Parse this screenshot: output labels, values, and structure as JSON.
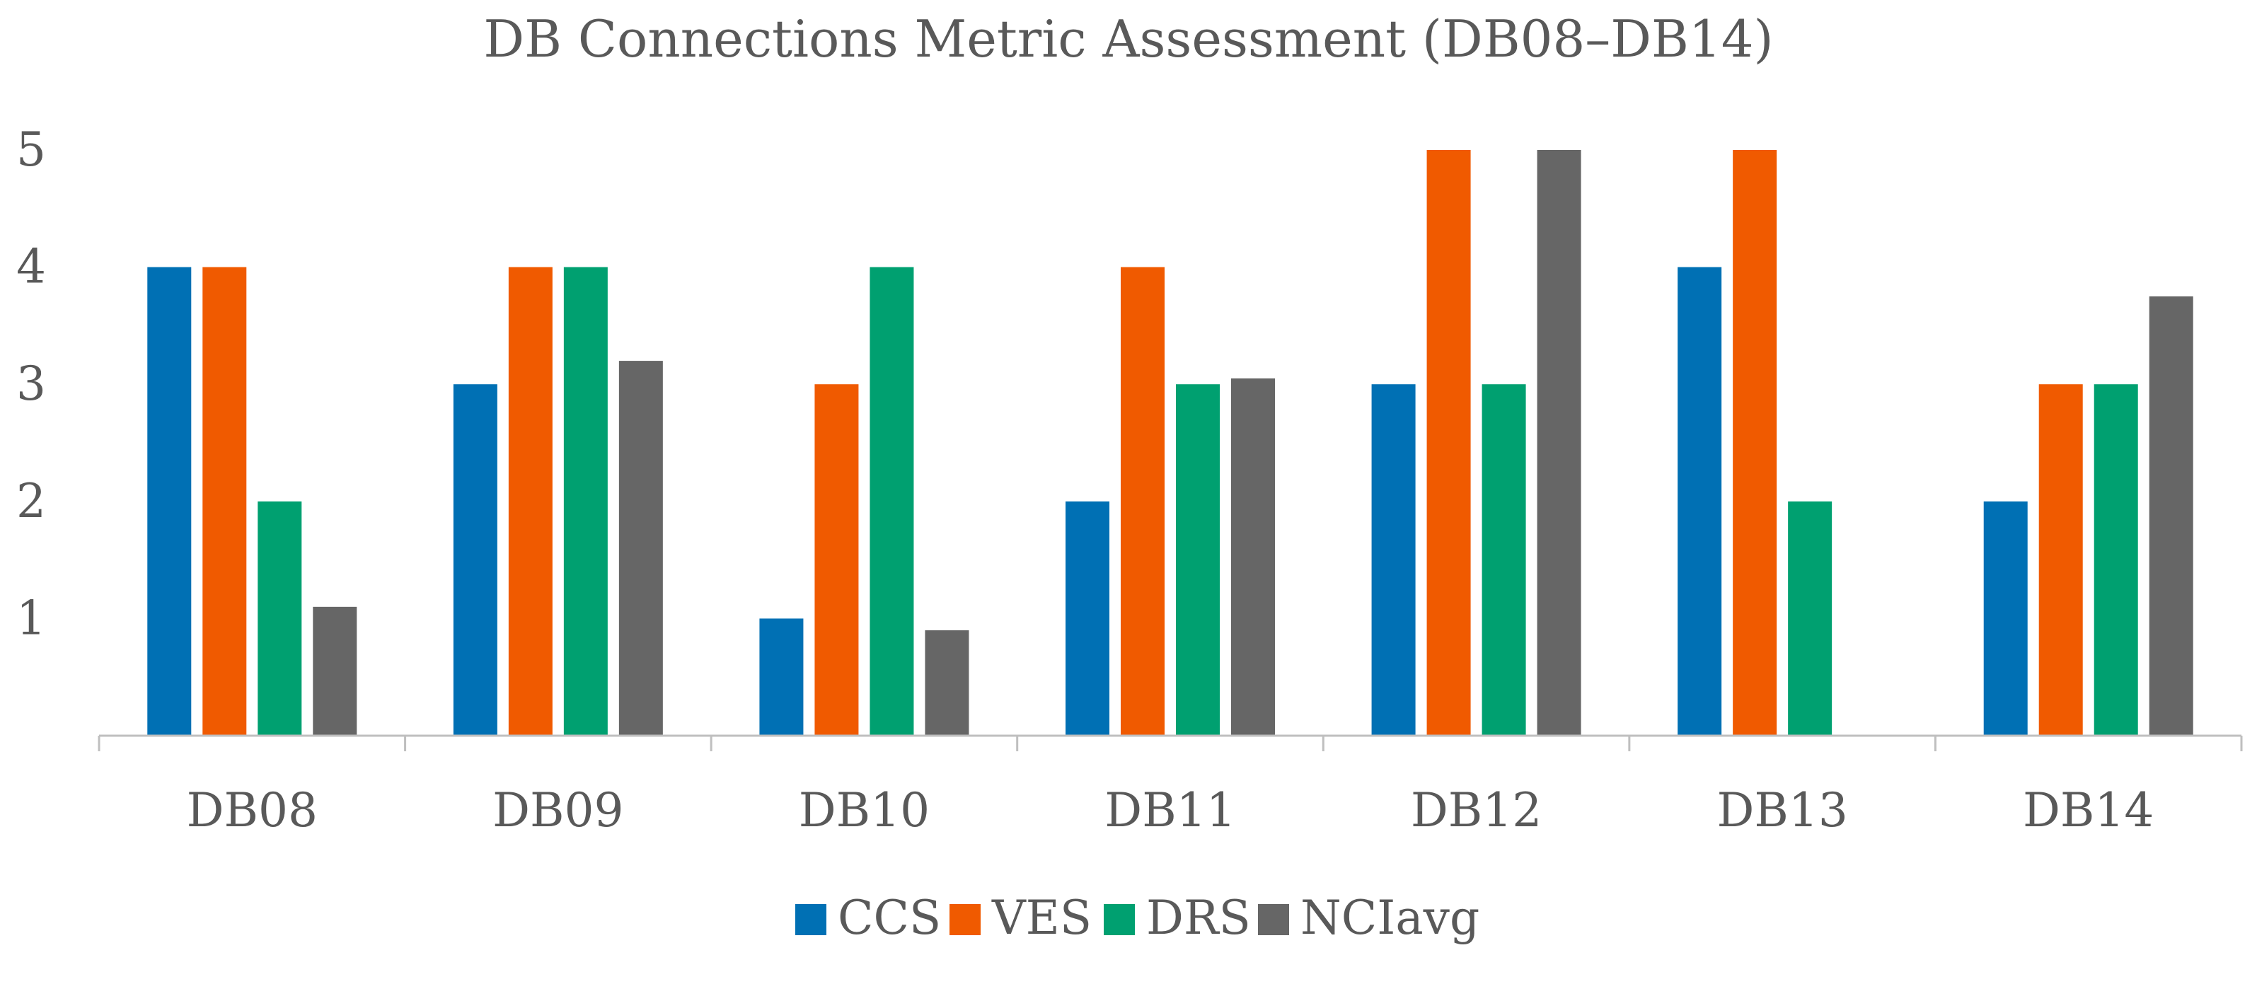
{
  "chart_data": {
    "type": "bar",
    "title": "DB Connections Metric Assessment (DB08–DB14)",
    "xlabel": "",
    "ylabel": "",
    "ylim": [
      0,
      5
    ],
    "yticks": [
      1,
      2,
      3,
      4,
      5
    ],
    "grid": false,
    "legend_position": "bottom",
    "categories": [
      "DB08",
      "DB09",
      "DB10",
      "DB11",
      "DB12",
      "DB13",
      "DB14"
    ],
    "series": [
      {
        "name": "CCS",
        "color": "#0070B4",
        "values": [
          4,
          3,
          1,
          2,
          3,
          4,
          2
        ]
      },
      {
        "name": "VES",
        "color": "#F05A00",
        "values": [
          4,
          4,
          3,
          4,
          5,
          5,
          3
        ]
      },
      {
        "name": "DRS",
        "color": "#00A070",
        "values": [
          2,
          4,
          4,
          3,
          3,
          2,
          3
        ]
      },
      {
        "name": "NCIavg",
        "color": "#666666",
        "values": [
          1.1,
          3.2,
          0.9,
          3.05,
          5,
          0,
          3.75
        ]
      }
    ]
  }
}
